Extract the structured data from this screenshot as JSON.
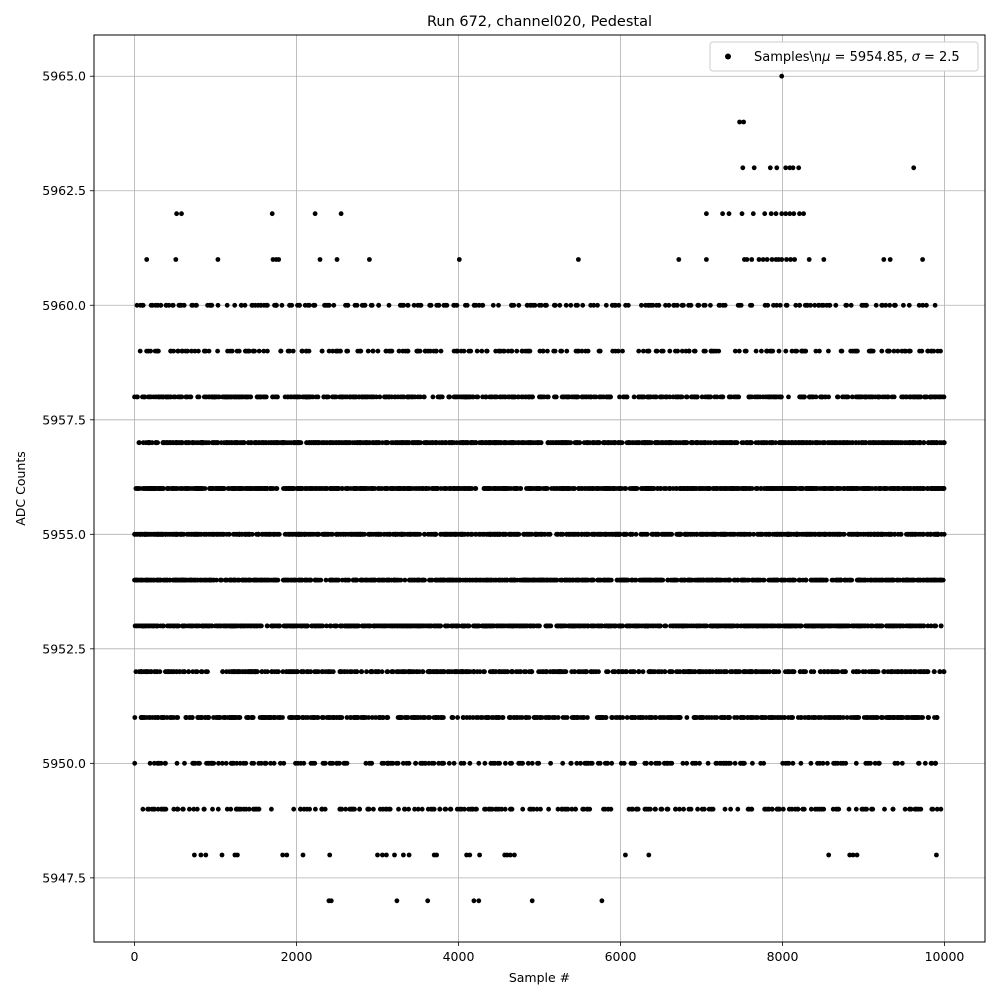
{
  "chart_data": {
    "type": "scatter",
    "title": "Run 672, channel020, Pedestal",
    "xlabel": "Sample #",
    "ylabel": "ADC Counts",
    "xlim": [
      -500,
      10500
    ],
    "ylim": [
      5946.1,
      5965.9
    ],
    "x_ticks": [
      0,
      2000,
      4000,
      6000,
      8000,
      10000
    ],
    "x_tick_labels": [
      "0",
      "2000",
      "4000",
      "6000",
      "8000",
      "10000"
    ],
    "y_ticks": [
      5947.5,
      5950.0,
      5952.5,
      5955.0,
      5957.5,
      5960.0,
      5962.5,
      5965.0
    ],
    "y_tick_labels": [
      "5947.5",
      "5950.0",
      "5952.5",
      "5955.0",
      "5957.5",
      "5960.0",
      "5962.5",
      "5965.0"
    ],
    "grid": true,
    "legend_position": "top-right",
    "series": [
      {
        "name": "Samples\\nμ = 5954.85, σ = 2.5",
        "marker": "circle",
        "color": "#000000",
        "n_samples": 10000,
        "x_range": [
          0,
          9999
        ],
        "levels": [
          {
            "y": 5953,
            "density": "dense"
          },
          {
            "y": 5954,
            "density": "dense"
          },
          {
            "y": 5955,
            "density": "dense"
          },
          {
            "y": 5956,
            "density": "dense"
          },
          {
            "y": 5957,
            "density": "dense"
          },
          {
            "y": 5952,
            "density": "medium"
          },
          {
            "y": 5958,
            "density": "medium"
          },
          {
            "y": 5951,
            "density": "medium"
          },
          {
            "y": 5959,
            "density": "sparse"
          },
          {
            "y": 5950,
            "density": "sparse"
          },
          {
            "y": 5960,
            "density": "sparse"
          },
          {
            "y": 5949,
            "density": "sparse"
          },
          {
            "y": 5948,
            "x": [
              740,
              820,
              880,
              1080,
              1240,
              1270,
              1830,
              1880,
              2080,
              2410,
              3000,
              3060,
              3110,
              3210,
              3320,
              3390,
              3700,
              3730,
              4100,
              4140,
              4260,
              4570,
              4600,
              4640,
              4690,
              6060,
              6350,
              8570,
              8830,
              8870,
              8920,
              9900
            ]
          },
          {
            "y": 5947,
            "x": [
              2400,
              2430,
              3240,
              3620,
              4190,
              4250,
              4910,
              5770
            ]
          },
          {
            "y": 5961,
            "x": [
              150,
              510,
              1030,
              1710,
              1750,
              1780,
              2290,
              2500,
              2900,
              4010,
              5480,
              6720,
              7060,
              7530,
              7560,
              7620,
              7710,
              7760,
              7810,
              7870,
              7920,
              7950,
              7990,
              8050,
              8100,
              8150,
              8330,
              8510,
              9250,
              9330,
              9730
            ]
          },
          {
            "y": 5962,
            "x": [
              520,
              580,
              1700,
              2230,
              2550,
              7060,
              7260,
              7340,
              7500,
              7640,
              7780,
              7860,
              7920,
              7990,
              8040,
              8090,
              8140,
              8210,
              8260
            ]
          },
          {
            "y": 5963,
            "x": [
              7510,
              7650,
              7850,
              7930,
              8040,
              8090,
              8130,
              8200,
              9620
            ]
          },
          {
            "y": 5964,
            "x": [
              7470,
              7520
            ]
          },
          {
            "y": 5965,
            "x": [
              7990
            ]
          }
        ]
      }
    ]
  }
}
